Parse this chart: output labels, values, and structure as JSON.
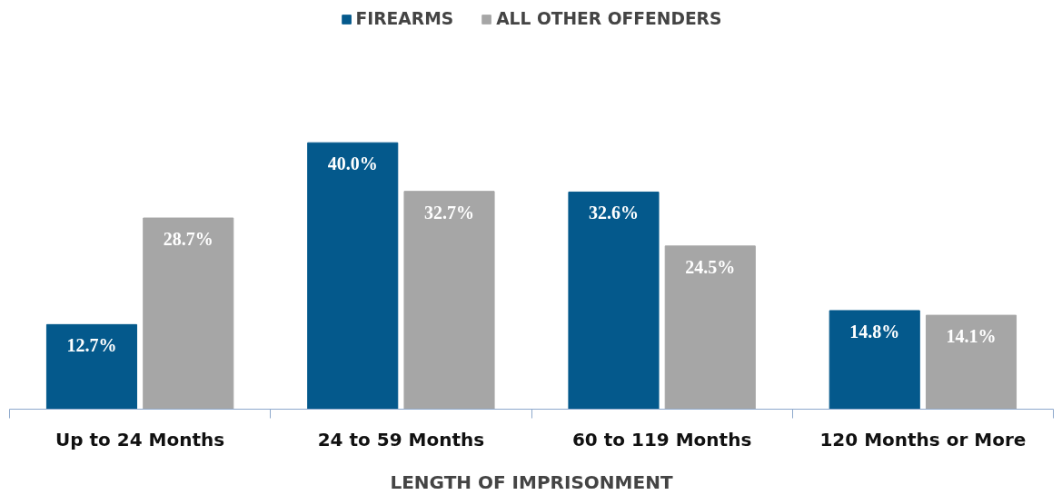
{
  "chart_data": {
    "type": "bar",
    "xlabel": "LENGTH OF IMPRISONMENT",
    "categories": [
      "Up to 24 Months",
      "24 to 59 Months",
      "60 to 119 Months",
      "120 Months or More"
    ],
    "series": [
      {
        "name": "FIREARMS",
        "color": "#04598c",
        "values": [
          12.7,
          40.0,
          32.6,
          14.8
        ],
        "value_labels": [
          "12.7%",
          "40.0%",
          "32.6%",
          "14.8%"
        ]
      },
      {
        "name": "ALL OTHER OFFENDERS",
        "color": "#a6a6a6",
        "values": [
          28.7,
          32.7,
          24.5,
          14.1
        ],
        "value_labels": [
          "28.7%",
          "32.7%",
          "24.5%",
          "14.1%"
        ]
      }
    ],
    "legend": "top"
  }
}
